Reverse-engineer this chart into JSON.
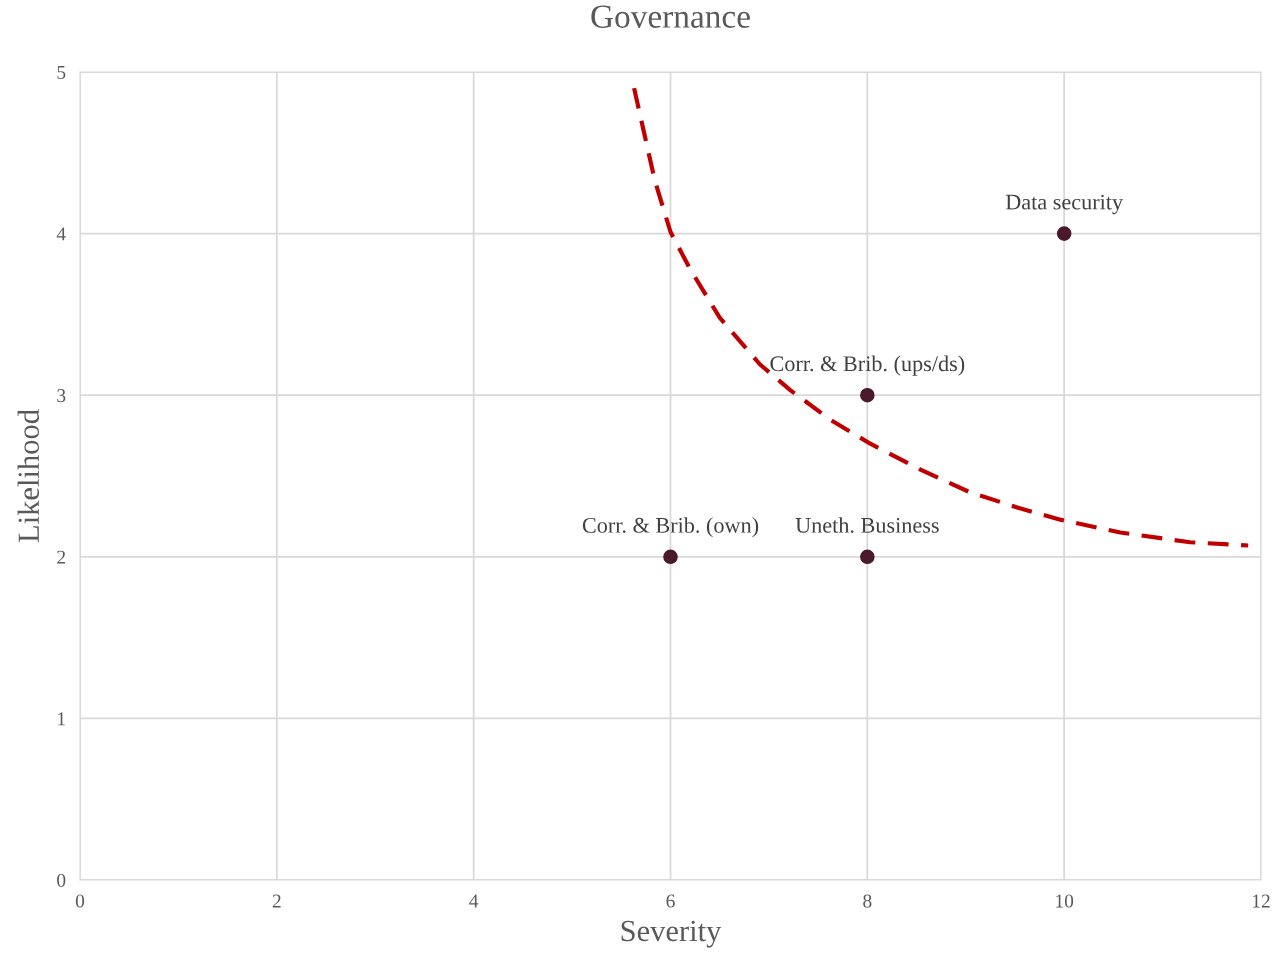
{
  "chart_data": {
    "type": "scatter",
    "title": "Governance",
    "xlabel": "Severity",
    "ylabel": "Likelihood",
    "xlim": [
      0,
      12
    ],
    "xticks": [
      0,
      2,
      4,
      6,
      8,
      10,
      12
    ],
    "ylim": [
      0,
      5
    ],
    "yticks": [
      0,
      1,
      2,
      3,
      4,
      5
    ],
    "grid": true,
    "legend": false,
    "marker": "circle",
    "series": [
      {
        "color": "#4a1a2c",
        "x": [
          6,
          8,
          8,
          10
        ],
        "values": [
          2,
          2,
          3,
          4
        ]
      },
      {
        "type": "line",
        "line_style": "dashed",
        "marker": "none",
        "color": "#c00000",
        "x": [
          5.63,
          5.84,
          6.0,
          6.2,
          6.5,
          6.91,
          7.22,
          7.62,
          8.03,
          8.54,
          9.04,
          9.55,
          9.96,
          10.57,
          11.28,
          11.87
        ],
        "values": [
          4.9,
          4.33,
          4.01,
          3.78,
          3.48,
          3.19,
          3.03,
          2.85,
          2.7,
          2.54,
          2.4,
          2.3,
          2.23,
          2.15,
          2.09,
          2.07
        ]
      }
    ],
    "annotations": [
      {
        "text": "Corr. & Brib. (own)",
        "x": 6,
        "y": 2
      },
      {
        "text": "Uneth. Business",
        "x": 8,
        "y": 2
      },
      {
        "text": "Corr. & Brib. (ups/ds)",
        "x": 8,
        "y": 3
      },
      {
        "text": "Data security",
        "x": 10,
        "y": 4
      }
    ]
  }
}
